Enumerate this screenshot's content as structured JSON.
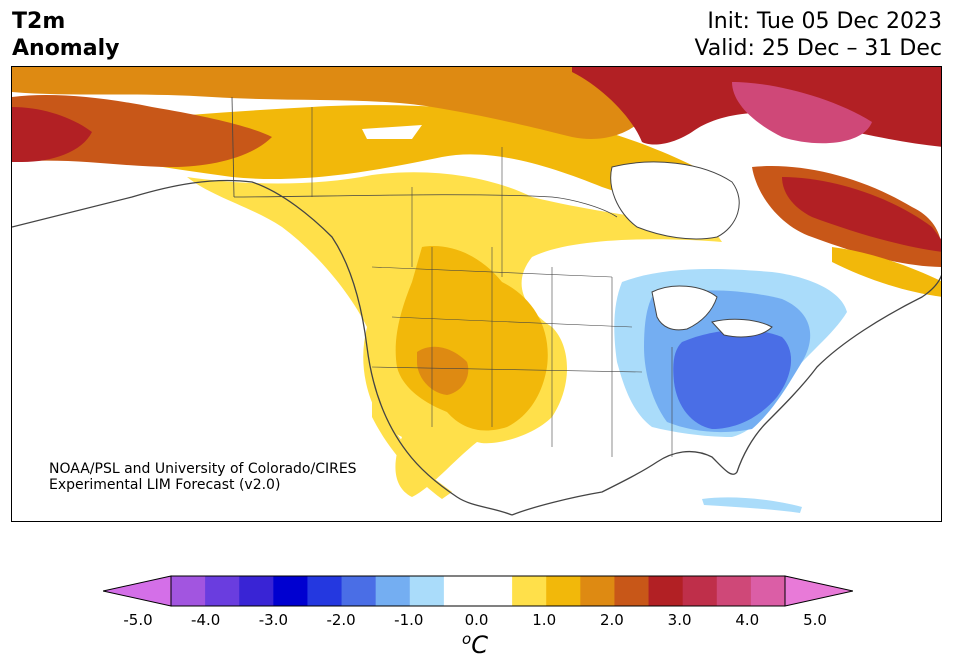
{
  "header": {
    "title_line1": "T2m",
    "title_line2": "Anomaly",
    "init": "Init: Tue 05 Dec 2023",
    "valid": "Valid: 25 Dec – 31 Dec"
  },
  "credit": {
    "line1": "NOAA/PSL and University of Colorado/CIRES",
    "line2": "Experimental LIM Forecast (v2.0)"
  },
  "colorbar": {
    "units_base": "C",
    "units_sup": "o",
    "tick_labels": [
      "-5.0",
      "-4.0",
      "-3.0",
      "-2.0",
      "-1.0",
      "0.0",
      "1.0",
      "2.0",
      "3.0",
      "4.0",
      "5.0"
    ],
    "colors": [
      "#d46fe8",
      "#a255e0",
      "#6a3ddf",
      "#3924d5",
      "#0000d0",
      "#2438e0",
      "#4a6ee6",
      "#74aef2",
      "#aadcfa",
      "#ffffff",
      "#ffffff",
      "#ffe04a",
      "#f2b80a",
      "#de8a12",
      "#c85718",
      "#b22024",
      "#bf2f4a",
      "#cf4878",
      "#db5ea6",
      "#e87ad8"
    ]
  },
  "map_legend_colors": {
    "warm_1": "#ffe04a",
    "warm_2": "#f2b80a",
    "warm_3": "#de8a12",
    "warm_4": "#c85718",
    "warm_5": "#b22024",
    "warm_6": "#cf4878",
    "cool_1": "#aadcfa",
    "cool_2": "#74aef2",
    "cool_3": "#4a6ee6",
    "land_lines": "#444444"
  }
}
